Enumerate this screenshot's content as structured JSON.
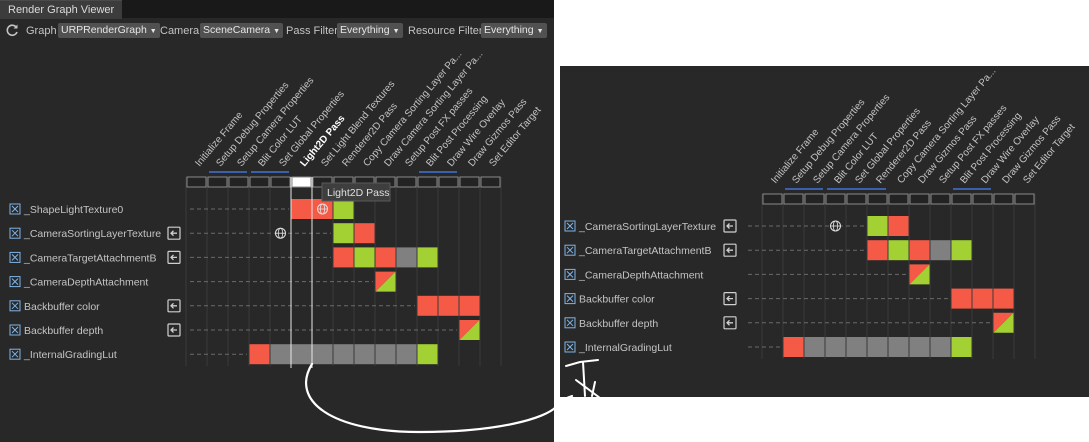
{
  "window": {
    "title": "Render Graph Viewer"
  },
  "toolbar": {
    "graph_label": "Graph",
    "graph_value": "URPRenderGraph",
    "camera_label": "Camera",
    "camera_value": "SceneCamera",
    "pass_filter_label": "Pass Filter",
    "pass_filter_value": "Everything",
    "resource_filter_label": "Resource Filter",
    "resource_filter_value": "Everything"
  },
  "colors": {
    "background": "#282828",
    "write": "#f45a46",
    "read": "#a3d133",
    "unused": "#808080",
    "highlight": "#3a5fad"
  },
  "left_view": {
    "passes": [
      "Initialize Frame",
      "Setup Debug Properties",
      "Setup Camera Properties",
      "Blit Color LUT",
      "Set Global Properties",
      "Light2D Pass",
      "Set Light Blend Textures",
      "Renderer2D Pass",
      "Copy Camera Sorting Layer Pa...",
      "Draw Camera Sorting Layer Pa...",
      "Setup Post FX passes",
      "Blit Post Processing",
      "Draw Wire Overlay",
      "Draw Gizmos Pass",
      "Set Editor Target"
    ],
    "selected_pass": "Light2D Pass",
    "tooltip": "Light2D Pass",
    "resources": [
      {
        "name": "_ShapeLightTexture0",
        "imported": false,
        "cells": [
          [
            5,
            "write"
          ],
          [
            6,
            "write"
          ],
          [
            7,
            "read"
          ]
        ],
        "icon_col": 6
      },
      {
        "name": "_CameraSortingLayerTexture",
        "imported": true,
        "cells": [
          [
            7,
            "read"
          ],
          [
            8,
            "write"
          ]
        ],
        "icon_col": 4
      },
      {
        "name": "_CameraTargetAttachmentB",
        "imported": true,
        "cells": [
          [
            7,
            "write"
          ],
          [
            8,
            "read"
          ],
          [
            9,
            "write"
          ],
          [
            10,
            "unused"
          ],
          [
            11,
            "read"
          ]
        ]
      },
      {
        "name": "_CameraDepthAttachment",
        "imported": false,
        "cells": [
          [
            9,
            "split"
          ]
        ]
      },
      {
        "name": "Backbuffer color",
        "imported": true,
        "cells": [
          [
            11,
            "write"
          ],
          [
            12,
            "write"
          ],
          [
            13,
            "write"
          ]
        ]
      },
      {
        "name": "Backbuffer depth",
        "imported": true,
        "cells": [
          [
            13,
            "split"
          ]
        ]
      },
      {
        "name": "_InternalGradingLut",
        "imported": false,
        "cells": [
          [
            3,
            "write"
          ],
          [
            4,
            "unused"
          ],
          [
            5,
            "unused"
          ],
          [
            6,
            "unused"
          ],
          [
            7,
            "unused"
          ],
          [
            8,
            "unused"
          ],
          [
            9,
            "unused"
          ],
          [
            10,
            "unused"
          ],
          [
            11,
            "read"
          ]
        ]
      }
    ],
    "highlight_groups": [
      [
        1,
        2
      ],
      [
        3,
        4
      ],
      [
        11,
        12
      ]
    ]
  },
  "right_view": {
    "passes": [
      "Initialize Frame",
      "Setup Debug Properties",
      "Setup Camera Properties",
      "Blit Color LUT",
      "Set Global Properties",
      "Renderer2D Pass",
      "Copy Camera Sorting Layer Pa...",
      "Draw Gizmos Pass",
      "Setup Post FX passes",
      "Blit Post Processing",
      "Draw Wire Overlay",
      "Draw Gizmos Pass",
      "Set Editor Target"
    ],
    "resources": [
      {
        "name": "_CameraSortingLayerTexture",
        "imported": true,
        "cells": [
          [
            5,
            "read"
          ],
          [
            6,
            "write"
          ]
        ],
        "icon_col": 3
      },
      {
        "name": "_CameraTargetAttachmentB",
        "imported": true,
        "cells": [
          [
            5,
            "write"
          ],
          [
            6,
            "read"
          ],
          [
            7,
            "write"
          ],
          [
            8,
            "unused"
          ],
          [
            9,
            "read"
          ]
        ]
      },
      {
        "name": "_CameraDepthAttachment",
        "imported": false,
        "cells": [
          [
            7,
            "split"
          ]
        ]
      },
      {
        "name": "Backbuffer color",
        "imported": true,
        "cells": [
          [
            9,
            "write"
          ],
          [
            10,
            "write"
          ],
          [
            11,
            "write"
          ]
        ]
      },
      {
        "name": "Backbuffer depth",
        "imported": true,
        "cells": [
          [
            11,
            "split"
          ]
        ]
      },
      {
        "name": "_InternalGradingLut",
        "imported": false,
        "cells": [
          [
            1,
            "write"
          ],
          [
            2,
            "unused"
          ],
          [
            3,
            "unused"
          ],
          [
            4,
            "unused"
          ],
          [
            5,
            "unused"
          ],
          [
            6,
            "unused"
          ],
          [
            7,
            "unused"
          ],
          [
            8,
            "unused"
          ],
          [
            9,
            "read"
          ]
        ]
      }
    ],
    "highlight_groups": [
      [
        1,
        2
      ],
      [
        3,
        5
      ],
      [
        9,
        10
      ]
    ]
  }
}
